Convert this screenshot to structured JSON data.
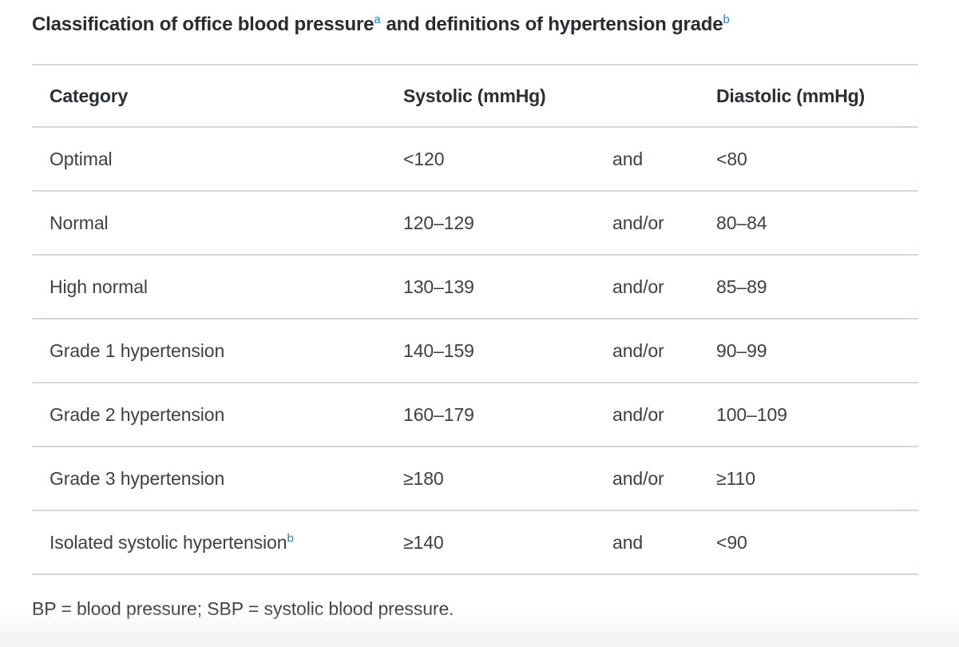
{
  "title": {
    "text_1": "Classification of office blood pressure",
    "sup_1": "a",
    "text_2": "and definitions of hypertension grade",
    "sup_2": "b"
  },
  "table": {
    "headers": {
      "category": "Category",
      "systolic": "Systolic (mmHg)",
      "conjunction": "",
      "diastolic": "Diastolic (mmHg)"
    },
    "rows": [
      {
        "category": "Optimal",
        "category_sup": "",
        "systolic": "<120",
        "conjunction": "and",
        "diastolic": "<80"
      },
      {
        "category": "Normal",
        "category_sup": "",
        "systolic": "120–129",
        "conjunction": "and/or",
        "diastolic": "80–84"
      },
      {
        "category": "High normal",
        "category_sup": "",
        "systolic": "130–139",
        "conjunction": "and/or",
        "diastolic": "85–89"
      },
      {
        "category": "Grade 1 hypertension",
        "category_sup": "",
        "systolic": "140–159",
        "conjunction": "and/or",
        "diastolic": "90–99"
      },
      {
        "category": "Grade 2 hypertension",
        "category_sup": "",
        "systolic": "160–179",
        "conjunction": "and/or",
        "diastolic": "100–109"
      },
      {
        "category": "Grade 3 hypertension",
        "category_sup": "",
        "systolic": "≥180",
        "conjunction": "and/or",
        "diastolic": "≥110"
      },
      {
        "category": "Isolated systolic hypertension",
        "category_sup": "b",
        "systolic": "≥140",
        "conjunction": "and",
        "diastolic": "<90"
      }
    ]
  },
  "footnote": "BP = blood pressure; SBP = systolic blood pressure.",
  "colors": {
    "title_text": "#272c31",
    "header_text": "#2a2f35",
    "body_text": "#3c4147",
    "row_border": "#d1d6e1",
    "footnote_link_blue": "#1f80d4",
    "page_background": "#ffffff",
    "bottom_fade": "#f2f2f4"
  }
}
